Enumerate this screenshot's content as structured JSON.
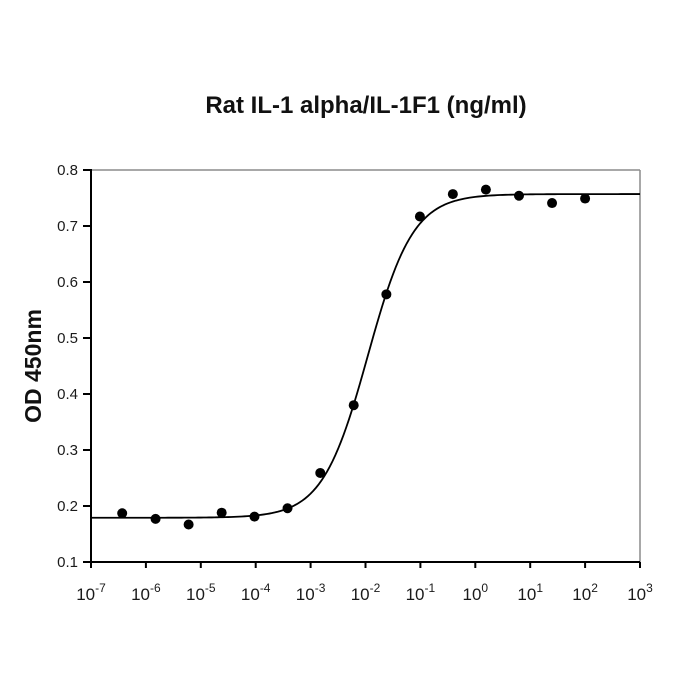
{
  "chart_data": {
    "type": "scatter",
    "title": "Rat IL-1 alpha/IL-1F1 (ng/ml)",
    "xlabel": "",
    "ylabel": "OD 450nm",
    "x_scale": "log10",
    "xlim_exponents": [
      -7,
      3
    ],
    "ylim": [
      0.1,
      0.8
    ],
    "y_ticks": [
      0.1,
      0.2,
      0.3,
      0.4,
      0.5,
      0.6,
      0.7,
      0.8
    ],
    "x_tick_exponents": [
      -7,
      -6,
      -5,
      -4,
      -3,
      -2,
      -1,
      0,
      1,
      2,
      3
    ],
    "grid": false,
    "legend": null,
    "points": [
      {
        "x": 3.7e-07,
        "y": 0.187
      },
      {
        "x": 1.5e-06,
        "y": 0.177
      },
      {
        "x": 6e-06,
        "y": 0.167
      },
      {
        "x": 2.4e-05,
        "y": 0.188
      },
      {
        "x": 9.5e-05,
        "y": 0.181
      },
      {
        "x": 0.00038,
        "y": 0.196
      },
      {
        "x": 0.0015,
        "y": 0.259
      },
      {
        "x": 0.0061,
        "y": 0.38
      },
      {
        "x": 0.024,
        "y": 0.578
      },
      {
        "x": 0.098,
        "y": 0.717
      },
      {
        "x": 0.39,
        "y": 0.757
      },
      {
        "x": 1.56,
        "y": 0.765
      },
      {
        "x": 6.25,
        "y": 0.754
      },
      {
        "x": 25,
        "y": 0.741
      },
      {
        "x": 100,
        "y": 0.749
      }
    ],
    "fit_curve": {
      "model": "4PL",
      "bottom": 0.179,
      "top": 0.757,
      "ec50_ng_ml": 0.011,
      "hill": 1.05
    },
    "marker": {
      "shape": "circle",
      "color": "#000000",
      "radius": 5
    },
    "curve_color": "#000000",
    "axis_color": "#000000",
    "frame_color": "#8c8c8c",
    "background_color": "#ffffff"
  }
}
